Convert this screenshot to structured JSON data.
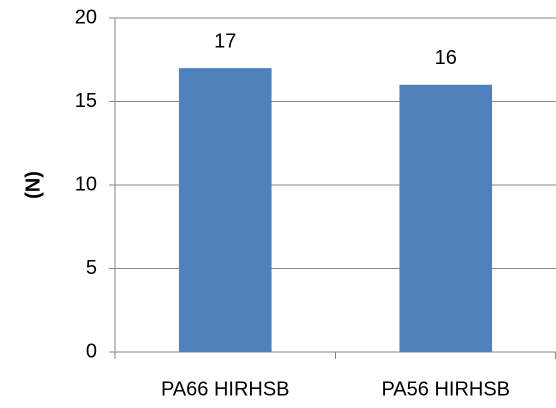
{
  "chart_data": {
    "type": "bar",
    "y_label": "(N)",
    "categories": [
      "PA66 HIRHSB",
      "PA56 HIRHSB"
    ],
    "values": [
      17,
      16
    ],
    "color": "#4f81bd",
    "ylim": [
      0,
      20
    ],
    "yticks": [
      0,
      5,
      10,
      15,
      20
    ],
    "grid": true
  }
}
